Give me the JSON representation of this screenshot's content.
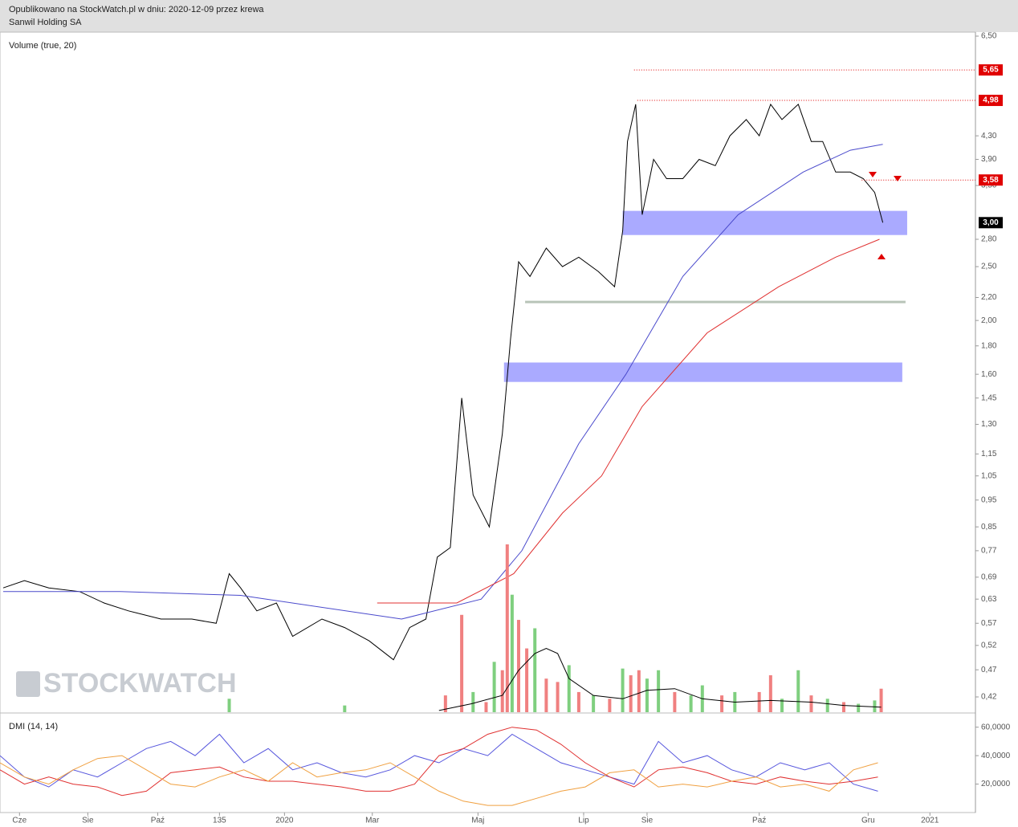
{
  "header": {
    "line1": "Opublikowano na StockWatch.pl w dniu: 2020-12-09 przez krewa",
    "line2": "Sanwil Holding SA"
  },
  "logo": "STOCKWATCH",
  "chart_data": [
    {
      "type": "line",
      "log": true,
      "xlim": [
        0,
        600
      ],
      "ylim": [
        0.42,
        6.5
      ],
      "yticks": [
        {
          "value": 6.5,
          "label": "6,50"
        },
        {
          "value": 4.3,
          "label": "4,30"
        },
        {
          "value": 3.9,
          "label": "3,90"
        },
        {
          "value": 3.5,
          "label": "3,50"
        },
        {
          "value": 2.8,
          "label": "2,80"
        },
        {
          "value": 2.5,
          "label": "2,50"
        },
        {
          "value": 2.2,
          "label": "2,20"
        },
        {
          "value": 2,
          "label": "2,00"
        },
        {
          "value": 1.8,
          "label": "1,80"
        },
        {
          "value": 1.6,
          "label": "1,60"
        },
        {
          "value": 1.45,
          "label": "1,45"
        },
        {
          "value": 1.3,
          "label": "1,30"
        },
        {
          "value": 1.15,
          "label": "1,15"
        },
        {
          "value": 1.05,
          "label": "1,05"
        },
        {
          "value": 0.95,
          "label": "0,95"
        },
        {
          "value": 0.85,
          "label": "0,85"
        },
        {
          "value": 0.77,
          "label": "0,77"
        },
        {
          "value": 0.69,
          "label": "0,69"
        },
        {
          "value": 0.63,
          "label": "0,63"
        },
        {
          "value": 0.57,
          "label": "0,57"
        },
        {
          "value": 0.52,
          "label": "0,52"
        },
        {
          "value": 0.47,
          "label": "0,47"
        },
        {
          "value": 0.42,
          "label": "0,42"
        }
      ],
      "levels": [
        {
          "value": 5.65,
          "label": "5,65",
          "start": 390,
          "color": "#e00000"
        },
        {
          "value": 4.98,
          "label": "4,98",
          "start": 392,
          "color": "#e00000"
        },
        {
          "value": 3.58,
          "label": "3,58",
          "start": 530,
          "color": "#e00000"
        },
        {
          "value": 3.0,
          "label": "3,00",
          "start": 600,
          "color": "#000000"
        }
      ],
      "zones": [
        {
          "from": 2.85,
          "to": 3.15,
          "start": 383,
          "end": 558,
          "color": "#aaaaff"
        },
        {
          "from": 1.55,
          "to": 1.68,
          "start": 310,
          "end": 555,
          "color": "#aaaaff"
        },
        {
          "from": 2.15,
          "to": 2.17,
          "start": 323,
          "end": 557,
          "color": "#b8c4b8"
        }
      ],
      "series": [
        {
          "name": "Close",
          "color": "#000000",
          "x": [
            2,
            15,
            30,
            49,
            64,
            79,
            99,
            118,
            133,
            141,
            148,
            158,
            170,
            180,
            198,
            212,
            227,
            242,
            252,
            262,
            269,
            277,
            284,
            291,
            301,
            309,
            314,
            319,
            326,
            336,
            346,
            356,
            368,
            378,
            383,
            386,
            391,
            395,
            402,
            410,
            420,
            430,
            440,
            449,
            459,
            467,
            474,
            481,
            491,
            499,
            506,
            514,
            523,
            531,
            538,
            543
          ],
          "values": [
            0.66,
            0.68,
            0.66,
            0.65,
            0.62,
            0.6,
            0.58,
            0.58,
            0.57,
            0.7,
            0.66,
            0.6,
            0.62,
            0.54,
            0.58,
            0.56,
            0.53,
            0.49,
            0.56,
            0.58,
            0.75,
            0.78,
            1.45,
            0.97,
            0.85,
            1.25,
            1.85,
            2.55,
            2.4,
            2.7,
            2.5,
            2.6,
            2.45,
            2.3,
            2.9,
            4.2,
            4.9,
            3.1,
            3.9,
            3.6,
            3.6,
            3.9,
            3.8,
            4.3,
            4.6,
            4.3,
            4.9,
            4.6,
            4.9,
            4.2,
            4.2,
            3.7,
            3.7,
            3.6,
            3.4,
            3.0
          ]
        },
        {
          "name": "MA blue",
          "color": "#4a4acc",
          "x": [
            2,
            74,
            148,
            247,
            296,
            321,
            356,
            385,
            420,
            454,
            494,
            523,
            543
          ],
          "values": [
            0.65,
            0.65,
            0.64,
            0.58,
            0.63,
            0.77,
            1.2,
            1.6,
            2.4,
            3.1,
            3.7,
            4.05,
            4.15
          ]
        },
        {
          "name": "MA red",
          "color": "#e03030",
          "x": [
            232,
            281,
            316,
            346,
            370,
            395,
            435,
            479,
            514,
            541
          ],
          "values": [
            0.62,
            0.62,
            0.7,
            0.9,
            1.05,
            1.4,
            1.9,
            2.3,
            2.6,
            2.8
          ]
        }
      ]
    },
    {
      "type": "bar",
      "title": "Volume (true, 20)",
      "xlim": [
        0,
        600
      ],
      "ylim": [
        0,
        100
      ],
      "x": [
        141,
        212,
        274,
        284,
        291,
        299,
        304,
        309,
        312,
        315,
        319,
        324,
        329,
        336,
        343,
        350,
        356,
        365,
        375,
        383,
        388,
        393,
        398,
        405,
        415,
        425,
        432,
        444,
        452,
        467,
        474,
        481,
        491,
        499,
        509,
        519,
        528,
        538,
        542
      ],
      "values": [
        8,
        4,
        10,
        58,
        12,
        6,
        30,
        25,
        100,
        70,
        55,
        38,
        50,
        20,
        18,
        28,
        12,
        10,
        8,
        26,
        22,
        25,
        20,
        25,
        12,
        10,
        16,
        10,
        12,
        12,
        22,
        8,
        25,
        10,
        8,
        6,
        5,
        7,
        14
      ],
      "colors": [
        "#7fcf7f",
        "#7fcf7f",
        "#f08080",
        "#f08080",
        "#7fcf7f",
        "#f08080",
        "#7fcf7f",
        "#f08080",
        "#f08080",
        "#7fcf7f",
        "#f08080",
        "#f08080",
        "#7fcf7f",
        "#f08080",
        "#f08080",
        "#7fcf7f",
        "#f08080",
        "#7fcf7f",
        "#f08080",
        "#7fcf7f",
        "#f08080",
        "#f08080",
        "#7fcf7f",
        "#7fcf7f",
        "#f08080",
        "#7fcf7f",
        "#7fcf7f",
        "#f08080",
        "#7fcf7f",
        "#f08080",
        "#f08080",
        "#7fcf7f",
        "#7fcf7f",
        "#f08080",
        "#7fcf7f",
        "#f08080",
        "#7fcf7f",
        "#7fcf7f",
        "#f08080"
      ],
      "average": {
        "name": "Volume MA",
        "color": "#000000",
        "x": [
          270,
          290,
          309,
          319,
          329,
          336,
          343,
          350,
          365,
          383,
          398,
          415,
          432,
          452,
          474,
          499,
          519,
          542
        ],
        "values": [
          1,
          5,
          10,
          25,
          35,
          38,
          35,
          20,
          10,
          8,
          13,
          14,
          8,
          6,
          7,
          6,
          4,
          3
        ]
      }
    },
    {
      "type": "line",
      "title": "DMI (14, 14)",
      "xlim": [
        0,
        600
      ],
      "ylim": [
        0,
        68
      ],
      "yticks": [
        {
          "value": 60,
          "label": "60,0000"
        },
        {
          "value": 40,
          "label": "40,0000"
        },
        {
          "value": 20,
          "label": "20,0000"
        }
      ],
      "xticks": [
        {
          "value": 12,
          "label": "Cze"
        },
        {
          "value": 54,
          "label": "Sie"
        },
        {
          "value": 97,
          "label": "Paź"
        },
        135,
        {
          "value": 175,
          "label": "2020"
        },
        {
          "value": 229,
          "label": "Mar"
        },
        {
          "value": 294,
          "label": "Maj"
        },
        {
          "value": 359,
          "label": "Lip"
        },
        {
          "value": 398,
          "label": "Sie"
        },
        {
          "value": 467,
          "label": "Paź"
        },
        {
          "value": 534,
          "label": "Gru"
        },
        {
          "value": 572,
          "label": "2021"
        }
      ],
      "series": [
        {
          "name": "DI+",
          "color": "#5555dd",
          "x": [
            0,
            15,
            30,
            45,
            60,
            75,
            90,
            105,
            120,
            135,
            150,
            165,
            180,
            195,
            210,
            225,
            240,
            255,
            270,
            285,
            300,
            315,
            330,
            345,
            360,
            375,
            390,
            405,
            420,
            435,
            450,
            465,
            480,
            495,
            510,
            525,
            540
          ],
          "values": [
            40,
            25,
            18,
            30,
            25,
            35,
            45,
            50,
            40,
            55,
            35,
            45,
            30,
            35,
            28,
            25,
            30,
            40,
            35,
            45,
            40,
            55,
            45,
            35,
            30,
            25,
            20,
            50,
            35,
            40,
            30,
            25,
            35,
            30,
            35,
            20,
            15
          ]
        },
        {
          "name": "ADX",
          "color": "#e03030",
          "x": [
            0,
            15,
            30,
            45,
            60,
            75,
            90,
            105,
            120,
            135,
            150,
            165,
            180,
            195,
            210,
            225,
            240,
            255,
            270,
            285,
            300,
            315,
            330,
            345,
            360,
            375,
            390,
            405,
            420,
            435,
            450,
            465,
            480,
            495,
            510,
            525,
            540
          ],
          "values": [
            30,
            20,
            25,
            20,
            18,
            12,
            15,
            28,
            30,
            32,
            25,
            22,
            22,
            20,
            18,
            15,
            15,
            20,
            40,
            45,
            55,
            60,
            58,
            48,
            35,
            25,
            18,
            30,
            32,
            28,
            22,
            20,
            25,
            22,
            20,
            22,
            25
          ]
        },
        {
          "name": "DI-",
          "color": "#f0a040",
          "x": [
            0,
            15,
            30,
            45,
            60,
            75,
            90,
            105,
            120,
            135,
            150,
            165,
            180,
            195,
            210,
            225,
            240,
            255,
            270,
            285,
            300,
            315,
            330,
            345,
            360,
            375,
            390,
            405,
            420,
            435,
            450,
            465,
            480,
            495,
            510,
            525,
            540
          ],
          "values": [
            35,
            25,
            20,
            30,
            38,
            40,
            30,
            20,
            18,
            25,
            30,
            22,
            35,
            25,
            28,
            30,
            35,
            25,
            15,
            8,
            5,
            5,
            10,
            15,
            18,
            28,
            30,
            18,
            20,
            18,
            22,
            25,
            18,
            20,
            15,
            30,
            35
          ]
        }
      ]
    }
  ]
}
